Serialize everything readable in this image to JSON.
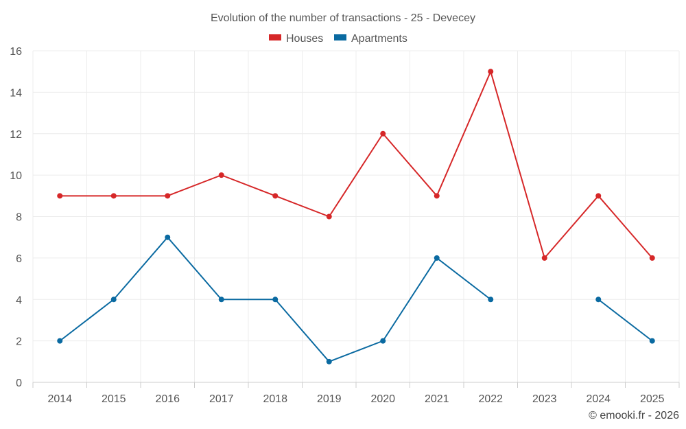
{
  "chart_data": {
    "type": "line",
    "title": "Evolution of the number of transactions - 25 - Devecey",
    "xlabel": "",
    "ylabel": "",
    "categories": [
      "2014",
      "2015",
      "2016",
      "2017",
      "2018",
      "2019",
      "2020",
      "2021",
      "2022",
      "2023",
      "2024",
      "2025"
    ],
    "ylim": [
      0,
      16
    ],
    "yticks": [
      "0",
      "2",
      "4",
      "6",
      "8",
      "10",
      "12",
      "14",
      "16"
    ],
    "grid": true,
    "legend_position": "top-center",
    "series": [
      {
        "name": "Houses",
        "color": "#d62728",
        "values": [
          9,
          9,
          9,
          10,
          9,
          8,
          12,
          9,
          15,
          6,
          9,
          6
        ]
      },
      {
        "name": "Apartments",
        "color": "#0a6aa1",
        "values": [
          2,
          4,
          7,
          4,
          4,
          1,
          2,
          6,
          4,
          null,
          4,
          2
        ]
      }
    ]
  },
  "credit": "© emooki.fr - 2026"
}
